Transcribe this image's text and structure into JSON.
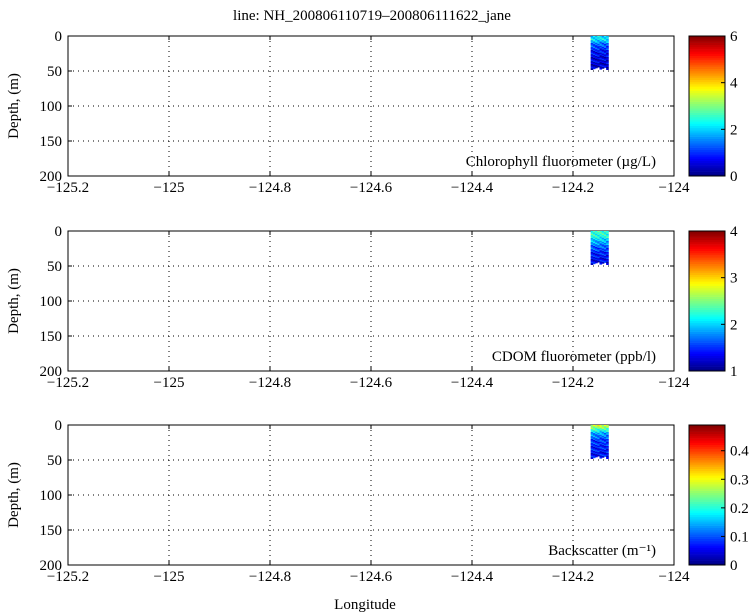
{
  "title": "line: NH_200806110719–200806111622_jane",
  "xlabel": "Longitude",
  "ylabel": "Depth, (m)",
  "chart_data": [
    {
      "type": "heatmap",
      "label": "Chlorophyll fluorometer (µg/L)",
      "xlim": [
        -125.2,
        -124.0
      ],
      "ylim": [
        200,
        0
      ],
      "xticks": [
        -125.2,
        -125,
        -124.8,
        -124.6,
        -124.4,
        -124.2,
        -124
      ],
      "xtick_labels": [
        "−125.2",
        "−125",
        "−124.8",
        "−124.6",
        "−124.4",
        "−124.2",
        "−124"
      ],
      "yticks": [
        0,
        50,
        100,
        150,
        200
      ],
      "ytick_labels": [
        "0",
        "50",
        "100",
        "150",
        "200"
      ],
      "grid": true,
      "colorbar": {
        "min": 0,
        "max": 6,
        "ticks": [
          0,
          2,
          4,
          6
        ],
        "tick_labels": [
          "0",
          "2",
          "4",
          "6"
        ],
        "colormap": "jet"
      },
      "data": {
        "lon_range": [
          -124.165,
          -124.13
        ],
        "depth_range": [
          0,
          48
        ],
        "profile": [
          {
            "depth": 0,
            "value": 2.0
          },
          {
            "depth": 5,
            "value": 2.2
          },
          {
            "depth": 10,
            "value": 1.5
          },
          {
            "depth": 20,
            "value": 0.9
          },
          {
            "depth": 30,
            "value": 0.6
          },
          {
            "depth": 40,
            "value": 0.5
          },
          {
            "depth": 48,
            "value": 0.4
          }
        ]
      }
    },
    {
      "type": "heatmap",
      "label": "CDOM fluorometer (ppb/l)",
      "xlim": [
        -125.2,
        -124.0
      ],
      "ylim": [
        200,
        0
      ],
      "xticks": [
        -125.2,
        -125,
        -124.8,
        -124.6,
        -124.4,
        -124.2,
        -124
      ],
      "xtick_labels": [
        "−125.2",
        "−125",
        "−124.8",
        "−124.6",
        "−124.4",
        "−124.2",
        "−124"
      ],
      "yticks": [
        0,
        50,
        100,
        150,
        200
      ],
      "ytick_labels": [
        "0",
        "50",
        "100",
        "150",
        "200"
      ],
      "grid": true,
      "colorbar": {
        "min": 1,
        "max": 4,
        "ticks": [
          1,
          2,
          3,
          4
        ],
        "tick_labels": [
          "1",
          "2",
          "3",
          "4"
        ],
        "colormap": "jet"
      },
      "data": {
        "lon_range": [
          -124.165,
          -124.13
        ],
        "depth_range": [
          0,
          48
        ],
        "profile": [
          {
            "depth": 0,
            "value": 2.3
          },
          {
            "depth": 8,
            "value": 2.2
          },
          {
            "depth": 15,
            "value": 1.9
          },
          {
            "depth": 25,
            "value": 1.6
          },
          {
            "depth": 35,
            "value": 1.4
          },
          {
            "depth": 48,
            "value": 1.3
          }
        ]
      }
    },
    {
      "type": "heatmap",
      "label": "Backscatter (m⁻¹)",
      "xlim": [
        -125.2,
        -124.0
      ],
      "ylim": [
        200,
        0
      ],
      "xticks": [
        -125.2,
        -125,
        -124.8,
        -124.6,
        -124.4,
        -124.2,
        -124
      ],
      "xtick_labels": [
        "−125.2",
        "−125",
        "−124.8",
        "−124.6",
        "−124.4",
        "−124.2",
        "−124"
      ],
      "yticks": [
        0,
        50,
        100,
        150,
        200
      ],
      "ytick_labels": [
        "0",
        "50",
        "100",
        "150",
        "200"
      ],
      "grid": true,
      "colorbar": {
        "min": 0,
        "max": 0.49,
        "ticks": [
          0,
          0.1,
          0.2,
          0.3,
          0.4
        ],
        "tick_labels": [
          "0",
          "0.1",
          "0.2",
          "0.3",
          "0.4"
        ],
        "colormap": "jet"
      },
      "data": {
        "lon_range": [
          -124.165,
          -124.13
        ],
        "depth_range": [
          0,
          48
        ],
        "profile": [
          {
            "depth": 0,
            "value": 0.3
          },
          {
            "depth": 6,
            "value": 0.22
          },
          {
            "depth": 12,
            "value": 0.14
          },
          {
            "depth": 22,
            "value": 0.09
          },
          {
            "depth": 35,
            "value": 0.07
          },
          {
            "depth": 48,
            "value": 0.06
          }
        ]
      }
    }
  ]
}
